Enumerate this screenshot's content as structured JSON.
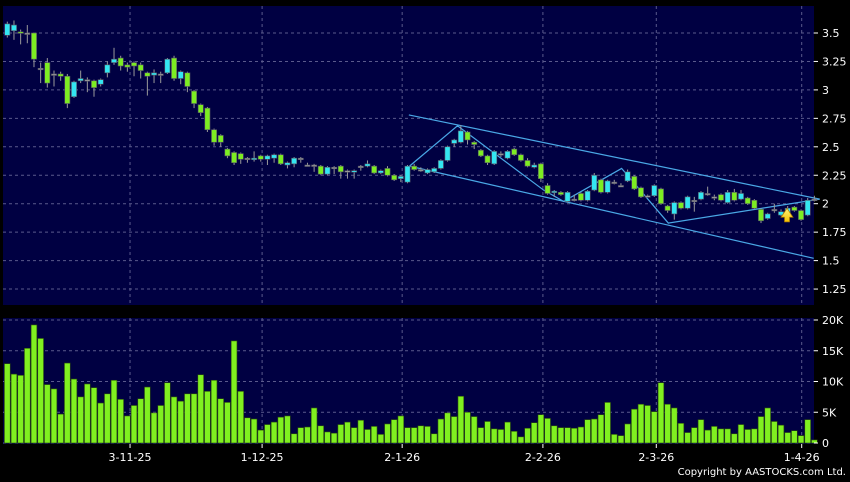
{
  "colors": {
    "background": "#000000",
    "panel": "#000042",
    "grid": "#5a5a8c",
    "up": "#33e6f2",
    "down": "#7ded22",
    "flat": "#a0a0a0",
    "volume": "#80f020",
    "trendline": "#4aa8e6",
    "arrow": "#f5c400"
  },
  "copyright": "Copyright by AASTOCKS.com Ltd.",
  "chart_data": [
    {
      "type": "candlestick",
      "ylim": [
        1.1,
        3.65
      ],
      "yticks": [
        3.5,
        3.25,
        3,
        2.75,
        2.5,
        2.25,
        2,
        1.75,
        1.5,
        1.25
      ],
      "ytick_labels": [
        "3.5",
        "3.25",
        "3",
        "2.75",
        "2.5",
        "2.25",
        "2",
        "1.75",
        "1.5",
        "1.25"
      ],
      "grid": true,
      "ohlc_fields": [
        "open",
        "high",
        "low",
        "close"
      ],
      "ohlc": [
        [
          3.48,
          3.6,
          3.46,
          3.58
        ],
        [
          3.52,
          3.61,
          3.44,
          3.57
        ],
        [
          3.51,
          3.53,
          3.4,
          3.5
        ],
        [
          3.5,
          3.57,
          3.41,
          3.5
        ],
        [
          3.5,
          3.5,
          3.2,
          3.27
        ],
        [
          3.19,
          3.24,
          3.06,
          3.19
        ],
        [
          3.24,
          3.28,
          3.02,
          3.06
        ],
        [
          3.14,
          3.17,
          3.03,
          3.14
        ],
        [
          3.14,
          3.16,
          3.08,
          3.12
        ],
        [
          3.12,
          3.14,
          2.84,
          2.88
        ],
        [
          2.94,
          3.08,
          2.93,
          3.07
        ],
        [
          3.08,
          3.17,
          3.06,
          3.1
        ],
        [
          3.09,
          3.11,
          2.98,
          3.09
        ],
        [
          3.08,
          3.09,
          2.94,
          3.02
        ],
        [
          3.05,
          3.1,
          3.03,
          3.09
        ],
        [
          3.15,
          3.25,
          3.11,
          3.22
        ],
        [
          3.24,
          3.37,
          3.22,
          3.27
        ],
        [
          3.28,
          3.3,
          3.17,
          3.21
        ],
        [
          3.22,
          3.24,
          3.16,
          3.2
        ],
        [
          3.24,
          3.25,
          3.12,
          3.21
        ],
        [
          3.22,
          3.24,
          3.1,
          3.17
        ],
        [
          3.15,
          3.16,
          2.95,
          3.12
        ],
        [
          3.13,
          3.18,
          3.06,
          3.15
        ],
        [
          3.14,
          3.16,
          3.06,
          3.14
        ],
        [
          3.15,
          3.28,
          3.14,
          3.27
        ],
        [
          3.28,
          3.3,
          3.08,
          3.1
        ],
        [
          3.1,
          3.17,
          3.05,
          3.16
        ],
        [
          3.15,
          3.16,
          2.98,
          3.03
        ],
        [
          2.99,
          3.0,
          2.84,
          2.88
        ],
        [
          2.87,
          2.88,
          2.77,
          2.8
        ],
        [
          2.84,
          2.85,
          2.63,
          2.65
        ],
        [
          2.65,
          2.66,
          2.51,
          2.54
        ],
        [
          2.6,
          2.61,
          2.5,
          2.54
        ],
        [
          2.48,
          2.49,
          2.4,
          2.42
        ],
        [
          2.45,
          2.46,
          2.34,
          2.36
        ],
        [
          2.44,
          2.45,
          2.35,
          2.39
        ],
        [
          2.4,
          2.41,
          2.36,
          2.4
        ],
        [
          2.39,
          2.46,
          2.37,
          2.4
        ],
        [
          2.42,
          2.43,
          2.37,
          2.39
        ],
        [
          2.39,
          2.43,
          2.34,
          2.42
        ],
        [
          2.4,
          2.44,
          2.36,
          2.43
        ],
        [
          2.43,
          2.44,
          2.34,
          2.35
        ],
        [
          2.34,
          2.37,
          2.31,
          2.36
        ],
        [
          2.35,
          2.41,
          2.32,
          2.4
        ],
        [
          2.4,
          2.41,
          2.36,
          2.4
        ],
        [
          2.34,
          2.36,
          2.33,
          2.34
        ],
        [
          2.34,
          2.35,
          2.28,
          2.34
        ],
        [
          2.33,
          2.34,
          2.25,
          2.26
        ],
        [
          2.26,
          2.33,
          2.25,
          2.32
        ],
        [
          2.32,
          2.33,
          2.26,
          2.32
        ],
        [
          2.33,
          2.34,
          2.22,
          2.28
        ],
        [
          2.29,
          2.3,
          2.22,
          2.29
        ],
        [
          2.28,
          2.3,
          2.22,
          2.29
        ],
        [
          2.33,
          2.34,
          2.29,
          2.33
        ],
        [
          2.33,
          2.38,
          2.32,
          2.35
        ],
        [
          2.33,
          2.34,
          2.26,
          2.27
        ],
        [
          2.27,
          2.3,
          2.26,
          2.29
        ],
        [
          2.31,
          2.33,
          2.24,
          2.25
        ],
        [
          2.25,
          2.26,
          2.2,
          2.21
        ],
        [
          2.22,
          2.25,
          2.19,
          2.24
        ],
        [
          2.19,
          2.34,
          2.18,
          2.33
        ],
        [
          2.33,
          2.35,
          2.29,
          2.3
        ],
        [
          2.3,
          2.32,
          2.28,
          2.3
        ],
        [
          2.27,
          2.31,
          2.26,
          2.3
        ],
        [
          2.28,
          2.32,
          2.27,
          2.31
        ],
        [
          2.31,
          2.39,
          2.3,
          2.38
        ],
        [
          2.38,
          2.51,
          2.37,
          2.5
        ],
        [
          2.53,
          2.57,
          2.5,
          2.56
        ],
        [
          2.54,
          2.69,
          2.53,
          2.64
        ],
        [
          2.63,
          2.64,
          2.52,
          2.56
        ],
        [
          2.54,
          2.55,
          2.48,
          2.52
        ],
        [
          2.47,
          2.48,
          2.41,
          2.42
        ],
        [
          2.42,
          2.43,
          2.34,
          2.36
        ],
        [
          2.35,
          2.47,
          2.34,
          2.46
        ],
        [
          2.44,
          2.46,
          2.41,
          2.44
        ],
        [
          2.4,
          2.47,
          2.39,
          2.46
        ],
        [
          2.48,
          2.49,
          2.42,
          2.43
        ],
        [
          2.43,
          2.44,
          2.37,
          2.38
        ],
        [
          2.38,
          2.4,
          2.32,
          2.33
        ],
        [
          2.32,
          2.36,
          2.31,
          2.34
        ],
        [
          2.35,
          2.36,
          2.19,
          2.22
        ],
        [
          2.16,
          2.18,
          2.08,
          2.09
        ],
        [
          2.1,
          2.12,
          2.06,
          2.11
        ],
        [
          2.1,
          2.11,
          2.07,
          2.08
        ],
        [
          2.02,
          2.11,
          2.01,
          2.1
        ],
        [
          2.04,
          2.08,
          2.02,
          2.04
        ],
        [
          2.09,
          2.1,
          2.02,
          2.03
        ],
        [
          2.03,
          2.12,
          2.02,
          2.11
        ],
        [
          2.12,
          2.27,
          2.11,
          2.25
        ],
        [
          2.21,
          2.22,
          2.09,
          2.1
        ],
        [
          2.1,
          2.21,
          2.09,
          2.2
        ],
        [
          2.19,
          2.21,
          2.17,
          2.19
        ],
        [
          2.16,
          2.18,
          2.15,
          2.16
        ],
        [
          2.2,
          2.3,
          2.19,
          2.28
        ],
        [
          2.24,
          2.25,
          2.12,
          2.13
        ],
        [
          2.14,
          2.15,
          2.05,
          2.06
        ],
        [
          2.07,
          2.08,
          2.06,
          2.07
        ],
        [
          2.07,
          2.17,
          2.06,
          2.16
        ],
        [
          2.13,
          2.14,
          1.99,
          2.0
        ],
        [
          1.98,
          1.99,
          1.92,
          1.94
        ],
        [
          1.91,
          2.02,
          1.86,
          2.01
        ],
        [
          2.01,
          2.02,
          1.95,
          1.96
        ],
        [
          1.96,
          2.07,
          1.95,
          2.06
        ],
        [
          2.03,
          2.06,
          1.93,
          2.03
        ],
        [
          2.04,
          2.11,
          2.03,
          2.1
        ],
        [
          2.09,
          2.15,
          2.07,
          2.09
        ],
        [
          2.06,
          2.08,
          2.03,
          2.06
        ],
        [
          2.08,
          2.09,
          2.02,
          2.03
        ],
        [
          2.01,
          2.12,
          2.0,
          2.1
        ],
        [
          2.1,
          2.13,
          2.02,
          2.03
        ],
        [
          2.04,
          2.12,
          2.03,
          2.09
        ],
        [
          2.05,
          2.06,
          1.99,
          2.0
        ],
        [
          2.03,
          2.04,
          1.95,
          1.96
        ],
        [
          1.95,
          1.96,
          1.83,
          1.85
        ],
        [
          1.87,
          1.92,
          1.86,
          1.91
        ],
        [
          1.95,
          2.0,
          1.92,
          1.95
        ],
        [
          1.9,
          1.95,
          1.89,
          1.93
        ],
        [
          1.91,
          1.98,
          1.9,
          1.96
        ],
        [
          1.97,
          1.98,
          1.93,
          1.94
        ],
        [
          1.94,
          1.95,
          1.85,
          1.86
        ],
        [
          1.9,
          2.05,
          1.89,
          2.03
        ],
        [
          2.04,
          2.07,
          2.02,
          2.04
        ]
      ],
      "trendlines": [
        {
          "kind": "channel-upper",
          "points": [
            [
              60.2,
              2.78
            ],
            [
              121.8,
              2.04
            ]
          ]
        },
        {
          "kind": "channel-lower",
          "points": [
            [
              60.3,
              2.33
            ],
            [
              120.9,
              1.52
            ]
          ]
        },
        {
          "kind": "zigzag",
          "points": [
            [
              60.3,
              2.33
            ],
            [
              67.5,
              2.685
            ],
            [
              80.4,
              2.12
            ],
            [
              83.4,
              2.02
            ],
            [
              92.1,
              2.31
            ],
            [
              99.1,
              1.83
            ],
            [
              121.8,
              2.04
            ]
          ]
        }
      ],
      "annotation": {
        "kind": "up-arrow",
        "bar": 116.9,
        "price_top": 1.96,
        "price_bottom": 1.84
      }
    },
    {
      "type": "bar",
      "ylim": [
        0,
        20
      ],
      "unit": "K",
      "yticks": [
        20,
        15,
        10,
        5,
        0
      ],
      "ytick_labels": [
        "20K",
        "15K",
        "10K",
        "5K",
        "0"
      ],
      "grid": true,
      "values": [
        12.9,
        11.2,
        11.0,
        15.4,
        19.2,
        17.0,
        9.5,
        8.8,
        4.7,
        13.0,
        10.4,
        7.5,
        9.6,
        9.0,
        6.5,
        8.0,
        10.2,
        7.1,
        4.4,
        6.1,
        7.2,
        9.1,
        4.9,
        6.1,
        9.8,
        7.5,
        6.8,
        8.0,
        8.0,
        11.1,
        8.4,
        10.2,
        7.2,
        6.6,
        16.6,
        8.4,
        4.1,
        3.9,
        2.1,
        3.0,
        3.4,
        4.2,
        4.4,
        1.5,
        2.5,
        2.6,
        5.7,
        2.8,
        1.8,
        1.6,
        3.0,
        3.4,
        2.5,
        3.7,
        2.2,
        2.7,
        1.4,
        3.1,
        3.8,
        4.4,
        2.5,
        2.5,
        2.8,
        2.7,
        1.5,
        3.9,
        4.9,
        4.3,
        7.6,
        5.0,
        4.3,
        2.5,
        3.5,
        2.3,
        2.2,
        3.4,
        1.9,
        1.0,
        2.4,
        3.3,
        4.6,
        4.0,
        2.8,
        2.5,
        2.5,
        2.4,
        2.6,
        3.8,
        3.9,
        4.6,
        6.6,
        1.4,
        1.2,
        3.1,
        5.5,
        6.3,
        6.1,
        5.1,
        9.8,
        6.3,
        5.7,
        3.2,
        1.7,
        2.5,
        3.8,
        2.1,
        2.7,
        2.3,
        2.3,
        1.5,
        3.0,
        2.2,
        2.3,
        4.3,
        5.7,
        3.5,
        2.9,
        1.7,
        2.0,
        1.2,
        3.8,
        0.5
      ]
    }
  ],
  "x_axis": {
    "ticks": [
      {
        "label": "3-11-25",
        "bar": 18.4
      },
      {
        "label": "1-12-25",
        "bar": 38.2
      },
      {
        "label": "2-1-26",
        "bar": 59.2
      },
      {
        "label": "2-2-26",
        "bar": 80.3
      },
      {
        "label": "2-3-26",
        "bar": 97.3
      },
      {
        "label": "1-4-26",
        "bar": 119.1
      }
    ]
  }
}
